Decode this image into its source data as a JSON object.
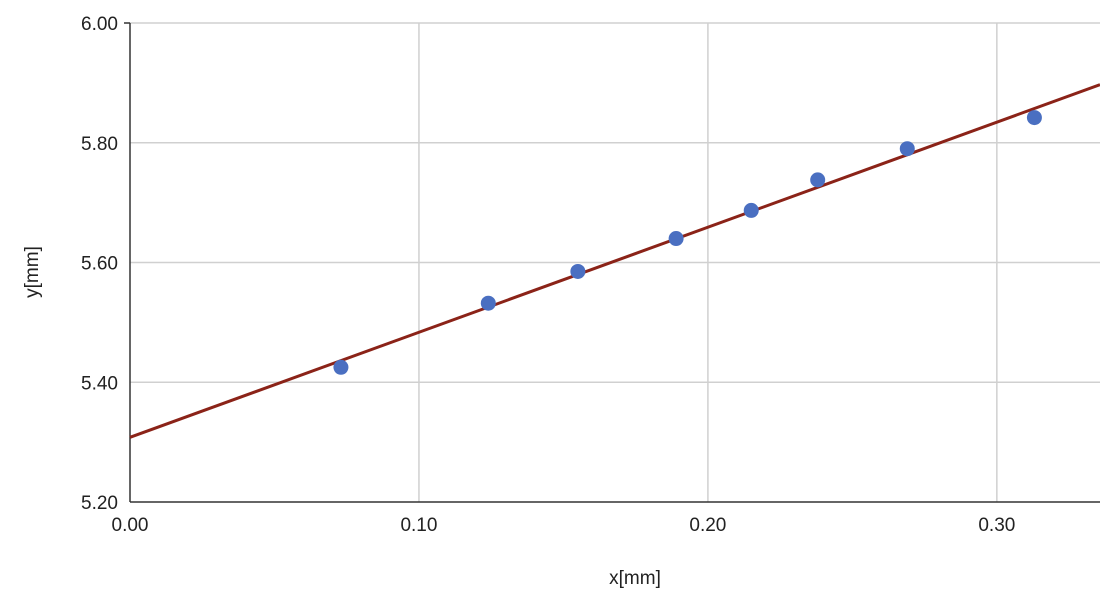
{
  "chart_data": {
    "type": "scatter",
    "xlabel": "x[mm]",
    "ylabel": "y[mm]",
    "xlim": [
      0,
      0.3357
    ],
    "ylim": [
      5.2,
      6.0
    ],
    "x_ticks": [
      0.0,
      0.1,
      0.2,
      0.3
    ],
    "x_tick_labels": [
      "0.00",
      "0.10",
      "0.20",
      "0.30"
    ],
    "y_ticks": [
      5.2,
      5.4,
      5.6,
      5.8,
      6.0
    ],
    "y_tick_labels": [
      "5.20",
      "5.40",
      "5.60",
      "5.80",
      "6.00"
    ],
    "grid": true,
    "series": [
      {
        "type": "scatter",
        "color": "#4a6fc1",
        "x": [
          0.073,
          0.124,
          0.155,
          0.189,
          0.215,
          0.238,
          0.269,
          0.313
        ],
        "y": [
          5.425,
          5.532,
          5.585,
          5.64,
          5.687,
          5.738,
          5.79,
          5.842
        ]
      },
      {
        "type": "line",
        "color": "#8b2318",
        "x": [
          0.0,
          0.3357
        ],
        "y": [
          5.308,
          5.897
        ]
      }
    ]
  }
}
